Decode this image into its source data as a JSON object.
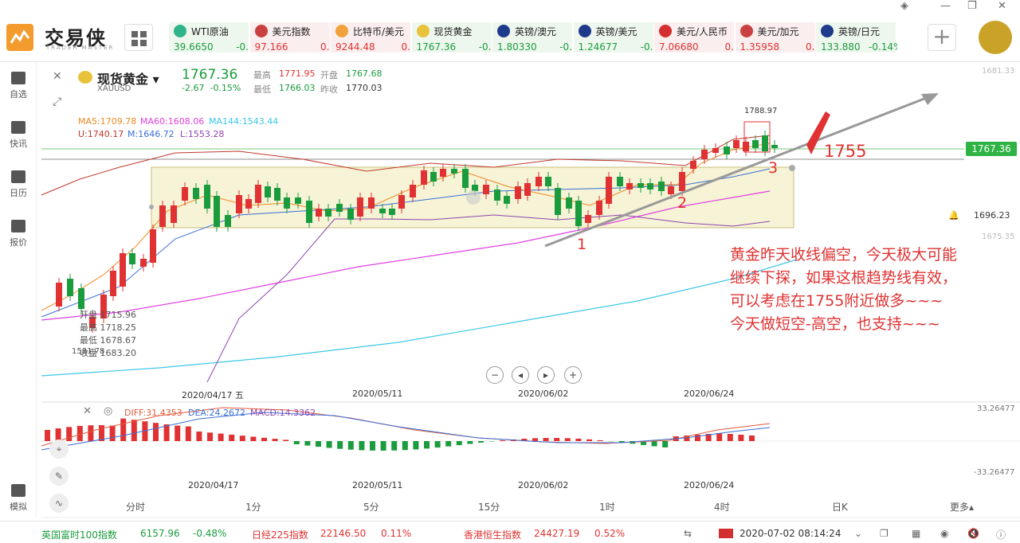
{
  "header": {
    "logo_text": "交易侠",
    "logo_sub": "TRADER MASTER",
    "tickers": [
      {
        "name": "WTI原油",
        "value": "39.6650",
        "change": "-0.",
        "dir": "down",
        "color": "#2fb38a"
      },
      {
        "name": "美元指数",
        "value": "97.166",
        "change": "0.",
        "dir": "up",
        "color": "#c94040"
      },
      {
        "name": "比特币/美元",
        "value": "9244.48",
        "change": "0.",
        "dir": "up",
        "color": "#f2a23a"
      },
      {
        "name": "现货黄金",
        "value": "1767.36",
        "change": "-0.",
        "dir": "down",
        "color": "#e8c23a"
      },
      {
        "name": "英镑/澳元",
        "value": "1.80330",
        "change": "-0.",
        "dir": "down",
        "color": "#1e3a8a"
      },
      {
        "name": "英镑/美元",
        "value": "1.24677",
        "change": "-0.",
        "dir": "down",
        "color": "#1e3a8a"
      },
      {
        "name": "美元/人民币",
        "value": "7.06680",
        "change": "0.",
        "dir": "up",
        "color": "#d32f2f"
      },
      {
        "name": "美元/加元",
        "value": "1.35958",
        "change": "0.",
        "dir": "up",
        "color": "#c94040"
      },
      {
        "name": "英镑/日元",
        "value": "133.880",
        "change": "-0.14%",
        "dir": "down",
        "color": "#1e3a8a"
      }
    ],
    "add_label": "+"
  },
  "sidebar": {
    "items": [
      {
        "label": "自选",
        "icon": "bookmark-icon"
      },
      {
        "label": "快讯",
        "icon": "news-icon"
      },
      {
        "label": "日历",
        "icon": "calendar-icon"
      },
      {
        "label": "报价",
        "icon": "trend-icon"
      },
      {
        "label": "模拟",
        "icon": "simulate-icon"
      }
    ]
  },
  "symbol": {
    "name": "现货黄金",
    "code": "XAUUSD",
    "price": "1767.36",
    "change": "-2.67",
    "change_pct": "-0.15%",
    "high_label": "最高",
    "high": "1771.95",
    "open_label": "开盘",
    "open": "1767.68",
    "low_label": "最低",
    "low": "1766.03",
    "prev_label": "昨收",
    "prev": "1770.03"
  },
  "indicators": {
    "ma5": "MA5:1709.78",
    "ma60": "MA60:1608.06",
    "ma144": "MA144:1543.44",
    "u": "U:1740.17",
    "m": "M:1646.72",
    "l": "L:1553.28",
    "diff": "DIFF:31.4353",
    "dea": "DEA:24.2672",
    "macd": "MACD:14.3362"
  },
  "axis": {
    "top_right": "1681.33",
    "price_tag": "1767.36",
    "alert": "1696.23",
    "mid": "1675.35",
    "macd_top": "33.26477",
    "macd_bot": "-33.26477",
    "peak": "1788.97",
    "dates": [
      "2020/04/17 五",
      "2020/05/11",
      "2020/06/02",
      "2020/06/24"
    ],
    "macd_dates": [
      "2020/04/17",
      "2020/05/11",
      "2020/06/02",
      "2020/06/24"
    ]
  },
  "tooltip": {
    "open": "开盘 1715.96",
    "high": "最高 1718.25",
    "low": "最低 1678.67",
    "close": "收盘 1683.20",
    "extra": "1581.78"
  },
  "annotation": {
    "level": "1755",
    "p1": "1",
    "p2": "2",
    "p3": "3",
    "lines": [
      "黄金昨天收线偏空，今天极大可能",
      "继续下探，如果这根趋势线有效，",
      "可以考虑在1755附近做多~~~",
      "今天做短空-高空，也支持~~~"
    ]
  },
  "periods": [
    "分时",
    "1分",
    "5分",
    "15分",
    "1时",
    "4时",
    "日K",
    "更多"
  ],
  "bottom": {
    "ftse_name": "英国富时100指数",
    "ftse_val": "6157.96",
    "ftse_chg": "-0.48%",
    "nikkei_name": "日经225指数",
    "nikkei_val": "22146.50",
    "nikkei_chg": "0.11%",
    "hsi_name": "香港恒生指数",
    "hsi_val": "24427.19",
    "hsi_chg": "0.52%",
    "datetime": "2020-07-02 08:14:24"
  },
  "colors": {
    "up": "#e03232",
    "down": "#1a9c3d",
    "ma5": "#f08a24",
    "ma60": "#e040e0",
    "ma144": "#3cc8e8",
    "boll": "#c0392b"
  }
}
